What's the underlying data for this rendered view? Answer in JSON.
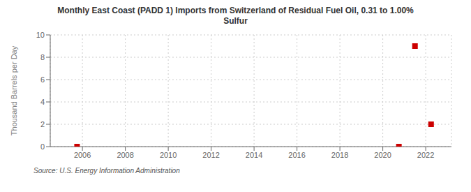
{
  "chart_data": {
    "type": "scatter",
    "title": "Monthly East Coast (PADD 1) Imports from Switzerland of Residual Fuel Oil, 0.31 to 1.00%\nSulfur",
    "ylabel": "Thousand Barrels per Day",
    "annotations": [
      "Source: U.S. Energy Information Administration"
    ],
    "x": [
      2005.75,
      2020.75,
      2021.5,
      2022.25
    ],
    "values": [
      0.0,
      0.0,
      9.0,
      2.0
    ],
    "color": "#cc0000",
    "marker": "square",
    "xlim": [
      2004.5,
      2023.2
    ],
    "ylim": [
      0,
      10
    ],
    "xticks": [
      2006,
      2008,
      2010,
      2012,
      2014,
      2016,
      2018,
      2020,
      2022
    ],
    "yticks": [
      0,
      2,
      4,
      6,
      8,
      10
    ],
    "grid": true
  }
}
